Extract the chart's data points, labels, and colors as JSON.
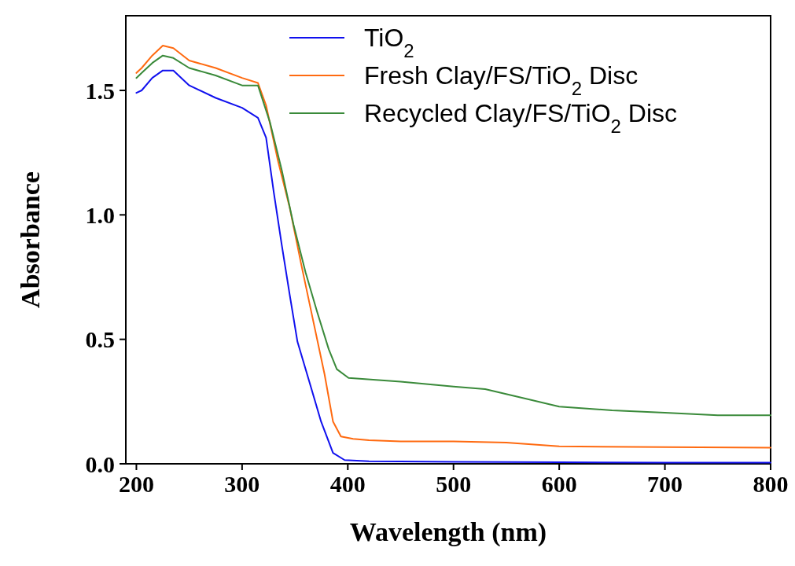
{
  "chart_data": {
    "type": "line",
    "xlabel": "Wavelength (nm)",
    "ylabel": "Absorbance",
    "xlim": [
      190,
      800
    ],
    "ylim": [
      0,
      1.8
    ],
    "xticks": [
      200,
      300,
      400,
      500,
      600,
      700,
      800
    ],
    "yticks": [
      {
        "value": 0,
        "label": "0.0"
      },
      {
        "value": 0.5,
        "label": "0.5"
      },
      {
        "value": 1,
        "label": "1.0"
      },
      {
        "value": 1.5,
        "label": "1.5"
      }
    ],
    "legend": "top right",
    "grid": false,
    "line_style": "solid",
    "series": [
      {
        "name": "TiO$_{2}$",
        "color": "#1010ee",
        "x": [
          200,
          205,
          215,
          225,
          235,
          250,
          275,
          300,
          315,
          322.7,
          330,
          337.5,
          345,
          352.4,
          363.6,
          374.7,
          386,
          397,
          420,
          500,
          600,
          700,
          800
        ],
        "values": [
          1.49,
          1.5,
          1.55,
          1.58,
          1.58,
          1.52,
          1.47,
          1.43,
          1.39,
          1.31,
          1.09,
          0.88,
          0.68,
          0.49,
          0.33,
          0.17,
          0.044,
          0.015,
          0.01,
          0.008,
          0.006,
          0.005,
          0.005
        ]
      },
      {
        "name": "Fresh Clay/FS/TiO$_{2}$ Disc",
        "color": "#ff6a10",
        "x": [
          200,
          205,
          215,
          225,
          235,
          250,
          275,
          300,
          315,
          322.7,
          333.8,
          345,
          356,
          367,
          378,
          386,
          393.5,
          405,
          420,
          450,
          500,
          550,
          600,
          700,
          800
        ],
        "values": [
          1.57,
          1.59,
          1.64,
          1.68,
          1.67,
          1.62,
          1.59,
          1.55,
          1.53,
          1.44,
          1.22,
          1.03,
          0.8,
          0.58,
          0.36,
          0.17,
          0.11,
          0.1,
          0.095,
          0.09,
          0.09,
          0.085,
          0.07,
          0.067,
          0.065
        ]
      },
      {
        "name": "Recycled Clay/FS/TiO$_{2}$ Disc",
        "color": "#3a8a3a",
        "x": [
          200,
          205,
          215,
          225,
          235,
          250,
          275,
          300,
          315,
          326.5,
          337.5,
          348.7,
          360,
          371,
          382,
          389.6,
          400.7,
          450,
          500,
          530,
          560,
          600,
          650,
          700,
          750,
          800
        ],
        "values": [
          1.55,
          1.57,
          1.61,
          1.64,
          1.63,
          1.59,
          1.56,
          1.52,
          1.52,
          1.37,
          1.18,
          0.96,
          0.77,
          0.61,
          0.46,
          0.38,
          0.345,
          0.33,
          0.31,
          0.3,
          0.27,
          0.23,
          0.215,
          0.205,
          0.195,
          0.195
        ]
      }
    ]
  }
}
